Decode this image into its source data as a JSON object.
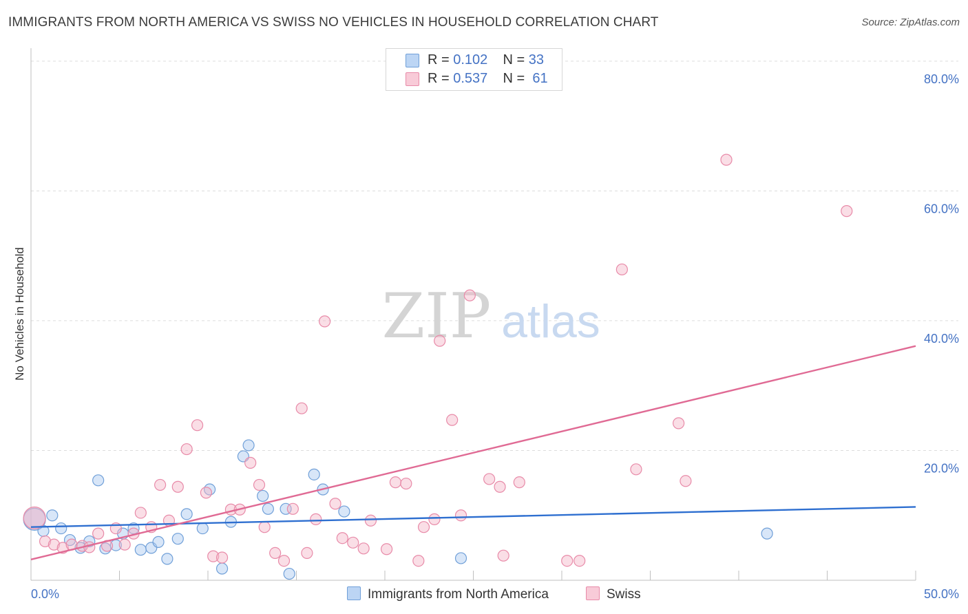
{
  "header": {
    "title": "IMMIGRANTS FROM NORTH AMERICA VS SWISS NO VEHICLES IN HOUSEHOLD CORRELATION CHART",
    "source": "Source: ZipAtlas.com"
  },
  "watermark": {
    "part1": "ZIP",
    "part2": "atlas"
  },
  "legend": {
    "r_label": "R =",
    "n_label": "N =",
    "rows": [
      {
        "r": "0.102",
        "n": "33",
        "color": "#a8c8f0"
      },
      {
        "r": "0.537",
        "n": "61",
        "color": "#f4b6c8"
      }
    ]
  },
  "colors": {
    "blue_fill": "#a8c8f0",
    "blue_stroke": "#6f9fd8",
    "blue_line": "#2e6fd0",
    "pink_fill": "#f4b6c8",
    "pink_stroke": "#e88aa8",
    "pink_line": "#e06a94",
    "axis_label": "#4472c4",
    "grid": "#dcdcdc"
  },
  "chart_data": {
    "type": "scatter",
    "title": "IMMIGRANTS FROM NORTH AMERICA VS SWISS NO VEHICLES IN HOUSEHOLD CORRELATION CHART",
    "xlabel": "",
    "ylabel": "No Vehicles in Household",
    "xlim": [
      0,
      50
    ],
    "ylim": [
      0,
      82
    ],
    "x_tick_labels": [
      "0.0%",
      "50.0%"
    ],
    "y_ticks": [
      20,
      40,
      60,
      80
    ],
    "y_tick_labels": [
      "20.0%",
      "40.0%",
      "60.0%",
      "80.0%"
    ],
    "grid": "horizontal dashed",
    "legend_placement": "top-center and bottom",
    "series": [
      {
        "name": "Immigrants from North America",
        "r": 0.102,
        "n": 33,
        "trend": {
          "x": [
            0,
            50
          ],
          "y": [
            8.2,
            11.3
          ]
        },
        "points": [
          {
            "x": 0.2,
            "y": 9.4,
            "big": true
          },
          {
            "x": 0.7,
            "y": 7.6
          },
          {
            "x": 1.2,
            "y": 10.0
          },
          {
            "x": 1.7,
            "y": 8.0
          },
          {
            "x": 2.2,
            "y": 6.2
          },
          {
            "x": 2.8,
            "y": 5.0
          },
          {
            "x": 3.3,
            "y": 6.0
          },
          {
            "x": 3.8,
            "y": 15.4
          },
          {
            "x": 4.2,
            "y": 4.9
          },
          {
            "x": 4.8,
            "y": 5.4
          },
          {
            "x": 5.2,
            "y": 7.2
          },
          {
            "x": 5.8,
            "y": 8.0
          },
          {
            "x": 6.2,
            "y": 4.7
          },
          {
            "x": 6.8,
            "y": 5.0
          },
          {
            "x": 7.2,
            "y": 5.9
          },
          {
            "x": 7.7,
            "y": 3.3
          },
          {
            "x": 8.3,
            "y": 6.4
          },
          {
            "x": 8.8,
            "y": 10.2
          },
          {
            "x": 9.7,
            "y": 8.0
          },
          {
            "x": 10.1,
            "y": 14.0
          },
          {
            "x": 10.8,
            "y": 1.8
          },
          {
            "x": 11.3,
            "y": 9.0
          },
          {
            "x": 12.0,
            "y": 19.1
          },
          {
            "x": 12.3,
            "y": 20.8
          },
          {
            "x": 13.1,
            "y": 13.0
          },
          {
            "x": 13.4,
            "y": 11.0
          },
          {
            "x": 14.6,
            "y": 1.0
          },
          {
            "x": 14.4,
            "y": 11.0
          },
          {
            "x": 16.0,
            "y": 16.3
          },
          {
            "x": 16.5,
            "y": 14.0
          },
          {
            "x": 17.7,
            "y": 10.6
          },
          {
            "x": 24.3,
            "y": 3.4
          },
          {
            "x": 41.6,
            "y": 7.2
          }
        ]
      },
      {
        "name": "Swiss",
        "r": 0.537,
        "n": 61,
        "trend": {
          "x": [
            0,
            50
          ],
          "y": [
            3.2,
            36.1
          ]
        },
        "points": [
          {
            "x": 0.2,
            "y": 9.6,
            "big": true
          },
          {
            "x": 0.8,
            "y": 6.0
          },
          {
            "x": 1.3,
            "y": 5.5
          },
          {
            "x": 1.8,
            "y": 5.0
          },
          {
            "x": 2.3,
            "y": 5.5
          },
          {
            "x": 2.9,
            "y": 5.3
          },
          {
            "x": 3.3,
            "y": 5.1
          },
          {
            "x": 3.8,
            "y": 7.2
          },
          {
            "x": 4.3,
            "y": 5.3
          },
          {
            "x": 4.8,
            "y": 8.0
          },
          {
            "x": 5.3,
            "y": 5.5
          },
          {
            "x": 5.8,
            "y": 7.2
          },
          {
            "x": 6.2,
            "y": 10.4
          },
          {
            "x": 6.8,
            "y": 8.2
          },
          {
            "x": 7.3,
            "y": 14.7
          },
          {
            "x": 7.8,
            "y": 9.2
          },
          {
            "x": 8.3,
            "y": 14.4
          },
          {
            "x": 8.8,
            "y": 20.2
          },
          {
            "x": 9.4,
            "y": 23.9
          },
          {
            "x": 9.9,
            "y": 13.5
          },
          {
            "x": 10.3,
            "y": 3.7
          },
          {
            "x": 10.8,
            "y": 3.5
          },
          {
            "x": 11.3,
            "y": 10.9
          },
          {
            "x": 11.8,
            "y": 10.9
          },
          {
            "x": 12.4,
            "y": 18.1
          },
          {
            "x": 12.9,
            "y": 14.7
          },
          {
            "x": 13.2,
            "y": 8.2
          },
          {
            "x": 13.8,
            "y": 4.2
          },
          {
            "x": 14.3,
            "y": 3.0
          },
          {
            "x": 14.8,
            "y": 11.0
          },
          {
            "x": 15.3,
            "y": 26.5
          },
          {
            "x": 15.6,
            "y": 4.2
          },
          {
            "x": 16.1,
            "y": 9.4
          },
          {
            "x": 16.6,
            "y": 39.9
          },
          {
            "x": 17.2,
            "y": 11.8
          },
          {
            "x": 17.6,
            "y": 6.5
          },
          {
            "x": 18.2,
            "y": 5.8
          },
          {
            "x": 18.8,
            "y": 4.9
          },
          {
            "x": 19.2,
            "y": 9.2
          },
          {
            "x": 20.1,
            "y": 4.8
          },
          {
            "x": 20.6,
            "y": 15.1
          },
          {
            "x": 21.2,
            "y": 14.9
          },
          {
            "x": 21.9,
            "y": 3.0
          },
          {
            "x": 22.2,
            "y": 8.2
          },
          {
            "x": 22.8,
            "y": 9.4
          },
          {
            "x": 23.1,
            "y": 36.9
          },
          {
            "x": 23.8,
            "y": 24.7
          },
          {
            "x": 24.3,
            "y": 10.0
          },
          {
            "x": 24.8,
            "y": 43.9
          },
          {
            "x": 25.9,
            "y": 15.6
          },
          {
            "x": 26.5,
            "y": 14.4
          },
          {
            "x": 26.7,
            "y": 3.8
          },
          {
            "x": 27.6,
            "y": 15.1
          },
          {
            "x": 30.3,
            "y": 3.0
          },
          {
            "x": 31.0,
            "y": 3.0
          },
          {
            "x": 33.4,
            "y": 47.9
          },
          {
            "x": 34.2,
            "y": 17.1
          },
          {
            "x": 36.6,
            "y": 24.2
          },
          {
            "x": 37.0,
            "y": 15.3
          },
          {
            "x": 39.3,
            "y": 64.8
          },
          {
            "x": 46.1,
            "y": 56.9
          }
        ]
      }
    ]
  }
}
